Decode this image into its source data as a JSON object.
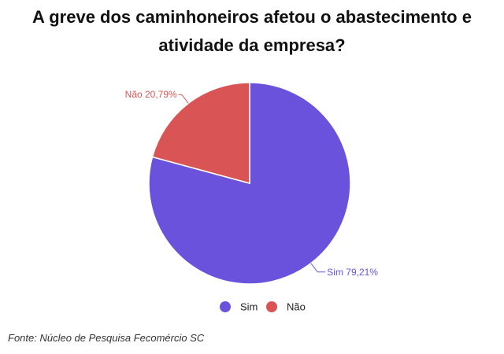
{
  "title_line1": "A greve dos caminhoneiros afetou o abastecimento e",
  "title_line2": "atividade da empresa?",
  "source": "Fonte: Núcleo de Pesquisa Fecomércio SC",
  "colors": {
    "sim": "#6a52dc",
    "nao": "#d95555"
  },
  "chart_data": {
    "type": "pie",
    "title": "A greve dos caminhoneiros afetou o abastecimento e atividade da empresa?",
    "slices": [
      {
        "label": "Sim",
        "value": 79.21,
        "display": "Sim 79,21%"
      },
      {
        "label": "Não",
        "value": 20.79,
        "display": "Não 20,79%"
      }
    ],
    "legend": {
      "placement": "bottom",
      "entries": [
        "Sim",
        "Não"
      ]
    }
  }
}
